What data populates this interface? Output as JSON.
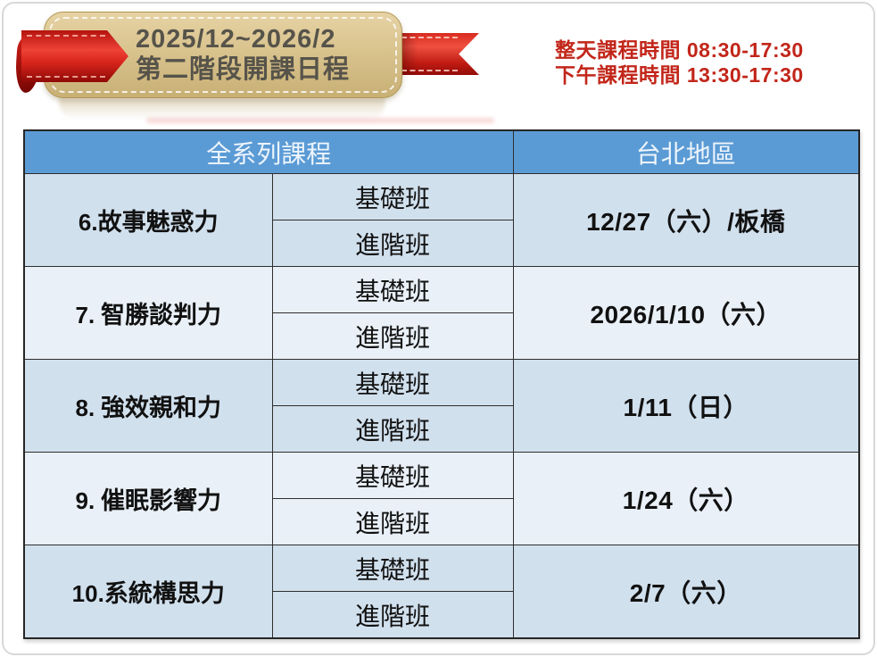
{
  "banner": {
    "line1": "2025/12~2026/2",
    "line2": "第二階段開課日程"
  },
  "schedule_times": {
    "line1": "整天課程時間 08:30-17:30",
    "line2": "下午課程時間 13:30-17:30"
  },
  "table": {
    "headers": {
      "course_series": "全系列課程",
      "region": "台北地區"
    },
    "class_levels": {
      "basic": "基礎班",
      "advanced": "進階班"
    },
    "rows": [
      {
        "num": "6.",
        "name": "故事魅惑力",
        "date": "12/27（六）/板橋"
      },
      {
        "num": "7.",
        "name": " 智勝談判力",
        "date": "2026/1/10（六）"
      },
      {
        "num": "8.",
        "name": " 強效親和力",
        "date": "1/11（日）"
      },
      {
        "num": "9.",
        "name": " 催眠影響力",
        "date": "1/24（六）"
      },
      {
        "num": "10.",
        "name": "系統構思力",
        "date": "2/7（六）"
      }
    ]
  },
  "colors": {
    "header_blue": "#5b9bd5",
    "row_dark": "#d1e0ed",
    "row_light": "#e9f0f7",
    "accent_red": "#c2261a",
    "banner_tan": "#d9c38e",
    "ribbon_red": "#d7251b"
  }
}
